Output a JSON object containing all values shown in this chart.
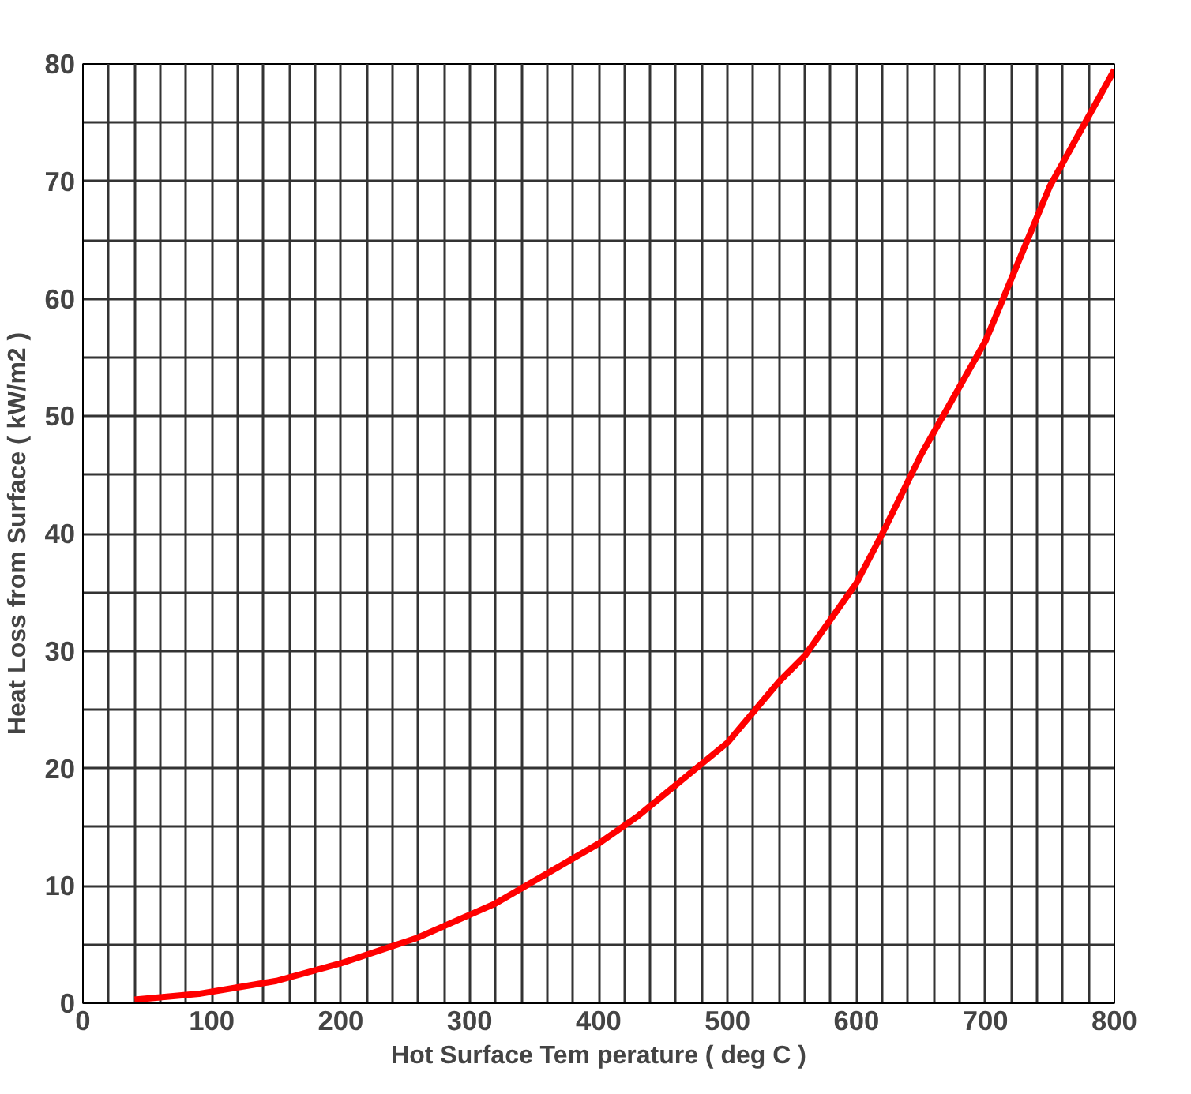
{
  "chart_data": {
    "type": "line",
    "xlabel": "Hot Surface Tem perature ( deg C )",
    "ylabel": "Heat Loss from Surface ( kW/m2 )",
    "x": [
      40,
      90,
      150,
      200,
      260,
      320,
      400,
      430,
      500,
      540,
      560,
      600,
      620,
      650,
      700,
      750,
      800
    ],
    "series": [
      {
        "color": "#ff0000",
        "values": [
          0.3,
          0.8,
          1.9,
          3.4,
          5.6,
          8.5,
          13.6,
          15.9,
          22.2,
          27.4,
          29.6,
          35.8,
          40,
          46.7,
          56.4,
          69.6,
          79.5
        ]
      }
    ],
    "xlim": [
      0,
      800
    ],
    "ylim": [
      0,
      80
    ],
    "xticks": [
      0,
      {
        "value": 20,
        "label": null
      },
      {
        "value": 40,
        "label": null
      },
      {
        "value": 60,
        "label": null
      },
      {
        "value": 80,
        "label": null
      },
      100,
      {
        "value": 120,
        "label": null
      },
      {
        "value": 140,
        "label": null
      },
      {
        "value": 160,
        "label": null
      },
      {
        "value": 180,
        "label": null
      },
      200,
      {
        "value": 220,
        "label": null
      },
      {
        "value": 240,
        "label": null
      },
      {
        "value": 260,
        "label": null
      },
      {
        "value": 280,
        "label": null
      },
      300,
      {
        "value": 320,
        "label": null
      },
      {
        "value": 340,
        "label": null
      },
      {
        "value": 360,
        "label": null
      },
      {
        "value": 380,
        "label": null
      },
      400,
      {
        "value": 420,
        "label": null
      },
      {
        "value": 440,
        "label": null
      },
      {
        "value": 460,
        "label": null
      },
      {
        "value": 480,
        "label": null
      },
      500,
      {
        "value": 520,
        "label": null
      },
      {
        "value": 540,
        "label": null
      },
      {
        "value": 560,
        "label": null
      },
      {
        "value": 580,
        "label": null
      },
      600,
      {
        "value": 620,
        "label": null
      },
      {
        "value": 640,
        "label": null
      },
      {
        "value": 660,
        "label": null
      },
      {
        "value": 680,
        "label": null
      },
      700,
      {
        "value": 720,
        "label": null
      },
      {
        "value": 740,
        "label": null
      },
      {
        "value": 760,
        "label": null
      },
      {
        "value": 780,
        "label": null
      },
      800
    ],
    "yticks": [
      0,
      {
        "value": 5,
        "label": null
      },
      10,
      {
        "value": 15,
        "label": null
      },
      20,
      {
        "value": 25,
        "label": null
      },
      30,
      {
        "value": 35,
        "label": null
      },
      40,
      {
        "value": 45,
        "label": null
      },
      50,
      {
        "value": 55,
        "label": null
      },
      60,
      {
        "value": 65,
        "label": null
      },
      70,
      {
        "value": 75,
        "label": null
      },
      80
    ],
    "grid": true,
    "line_style": "solid"
  }
}
